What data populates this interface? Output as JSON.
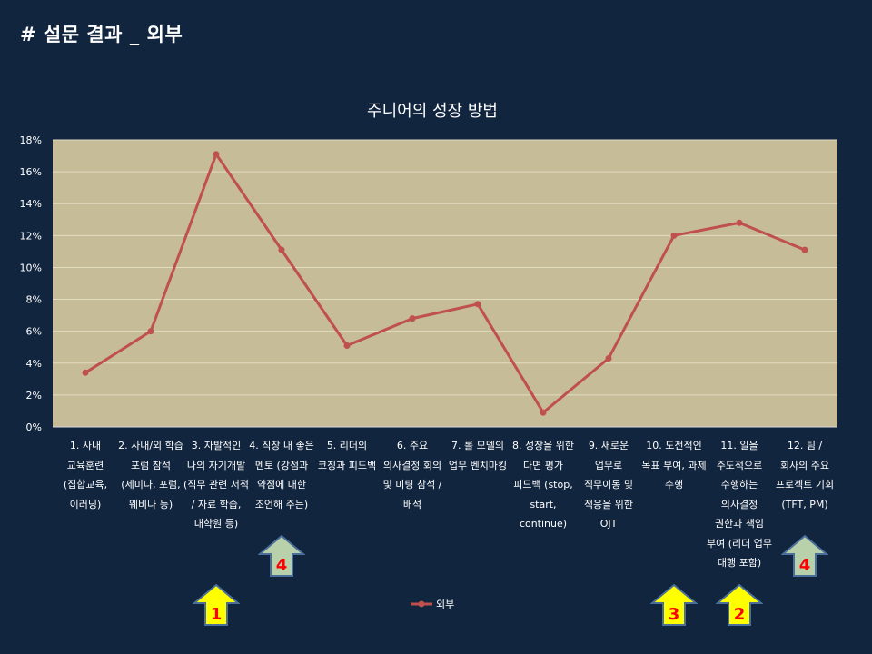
{
  "slide": {
    "title": "# 설문 결과 _ 외부"
  },
  "colors": {
    "background": "#12253f",
    "plot_area": "#c6bc97",
    "line": "#c0504d",
    "arrow_yellow": "#ffff00",
    "arrow_green": "#b9d1aa",
    "rank_text": "#ff0000"
  },
  "chart_data": {
    "type": "line",
    "title": "주니어의 성장 방법",
    "categories": [
      "1. 사내 교육훈련 (집합교육, 이러닝)",
      "2. 사내/외 학습 포럼 참석 (세미나, 포럼, 웨비나 등)",
      "3. 자발적인 나의 자기개발 (직무 관련 서적 / 자료 학습, 대학원 등)",
      "4. 직장 내 좋은 멘토 (강점과 약점에 대한 조언해 주는)",
      "5. 리더의 코칭과 피드백",
      "6. 주요 의사결정 회의 및 미팅 참석 / 배석",
      "7. 롤 모델의 업무 벤치마킹",
      "8. 성장을 위한 다면 평가 피드백 (stop, start, continue)",
      "9. 새로운 업무로 직무이동 및 적응을 위한 OJT",
      "10. 도전적인 목표 부여, 과제 수행",
      "11. 일을 주도적으로 수행하는 의사결정 권한과 책임 부여 (리더 업무 대행 포함)",
      "12. 팀 / 회사의 주요 프로젝트 기회 (TFT, PM)"
    ],
    "series": [
      {
        "name": "외부",
        "values": [
          3.4,
          6.0,
          17.1,
          11.1,
          5.1,
          6.8,
          7.7,
          0.9,
          4.3,
          12.0,
          12.8,
          11.1
        ]
      }
    ],
    "y_ticks": [
      "0%",
      "2%",
      "4%",
      "6%",
      "8%",
      "10%",
      "12%",
      "14%",
      "16%",
      "18%"
    ],
    "ylim": [
      0,
      18
    ],
    "grid": true,
    "legend_position": "bottom"
  },
  "annotations": [
    {
      "category_index": 2,
      "rank": "1",
      "color": "yellow"
    },
    {
      "category_index": 3,
      "rank": "4",
      "color": "green"
    },
    {
      "category_index": 9,
      "rank": "3",
      "color": "yellow"
    },
    {
      "category_index": 10,
      "rank": "2",
      "color": "yellow"
    },
    {
      "category_index": 11,
      "rank": "4",
      "color": "green"
    }
  ]
}
